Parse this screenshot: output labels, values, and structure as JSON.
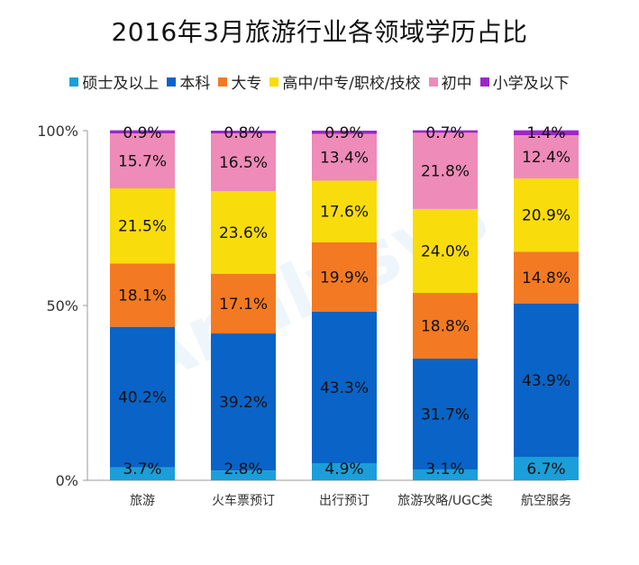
{
  "chart_data": {
    "type": "bar",
    "stacked": true,
    "title": "2016年3月旅游行业各领域学历占比",
    "categories": [
      "旅游",
      "火车票预订",
      "出行预订",
      "旅游攻略/UGC类",
      "航空服务"
    ],
    "series": [
      {
        "name": "硕士及以上",
        "color": "#1B9ED9",
        "values": [
          3.7,
          2.8,
          4.9,
          3.1,
          6.7
        ],
        "labels": [
          "3.7%",
          "2.8%",
          "4.9%",
          "3.1%",
          "6.7%"
        ]
      },
      {
        "name": "本科",
        "color": "#0A63C7",
        "values": [
          40.2,
          39.2,
          43.3,
          31.7,
          43.9
        ],
        "labels": [
          "40.2%",
          "39.2%",
          "43.3%",
          "31.7%",
          "43.9%"
        ]
      },
      {
        "name": "大专",
        "color": "#F37A22",
        "values": [
          18.1,
          17.1,
          19.9,
          18.8,
          14.8
        ],
        "labels": [
          "18.1%",
          "17.1%",
          "19.9%",
          "18.8%",
          "14.8%"
        ]
      },
      {
        "name": "高中/中专/职校/技校",
        "color": "#F8DC0C",
        "values": [
          21.5,
          23.6,
          17.6,
          24.0,
          20.9
        ],
        "labels": [
          "21.5%",
          "23.6%",
          "17.6%",
          "24.0%",
          "20.9%"
        ]
      },
      {
        "name": "初中",
        "color": "#EE8BB8",
        "values": [
          15.7,
          16.5,
          13.4,
          21.8,
          12.4
        ],
        "labels": [
          "15.7%",
          "16.5%",
          "13.4%",
          "21.8%",
          "12.4%"
        ]
      },
      {
        "name": "小学及以下",
        "color": "#9B27C8",
        "values": [
          0.9,
          0.8,
          0.9,
          0.7,
          1.4
        ],
        "labels": [
          "0.9%",
          "0.8%",
          "0.9%",
          "0.7%",
          "1.4%"
        ]
      }
    ],
    "ylim": [
      0,
      100
    ],
    "yticks": [
      0,
      50,
      100
    ],
    "ytick_labels": [
      "0%",
      "50%",
      "100%"
    ],
    "legend_position": "top",
    "grid": false
  }
}
